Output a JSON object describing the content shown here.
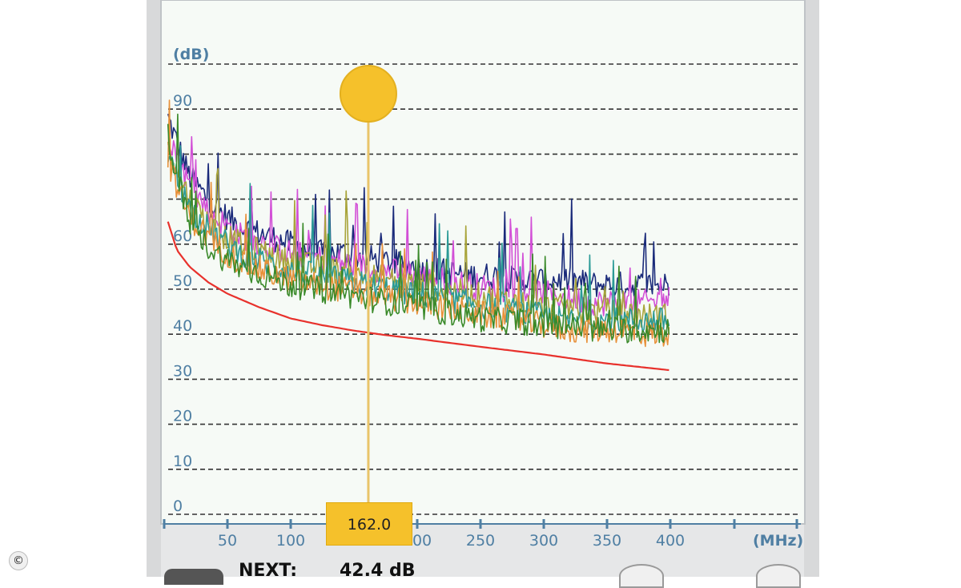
{
  "chart_data": {
    "type": "line",
    "xlabel": "(MHz)",
    "ylabel": "(dB)",
    "xlim": [
      0,
      400
    ],
    "ylim": [
      0,
      100
    ],
    "x_ticks": [
      50,
      100,
      150,
      200,
      250,
      300,
      350,
      400
    ],
    "x_tick_labels": [
      "50",
      "100",
      "",
      "200",
      "250",
      "300",
      "350",
      "400"
    ],
    "y_ticks": [
      0,
      10,
      20,
      30,
      40,
      50,
      60,
      70,
      80,
      90,
      100
    ],
    "y_tick_labels": [
      "0",
      "10",
      "20",
      "30",
      "40",
      "50",
      "60",
      "",
      "",
      "90",
      ""
    ],
    "grid": true,
    "limit_line": {
      "color": "#e8312c",
      "x": [
        3,
        10,
        20,
        35,
        50,
        75,
        100,
        125,
        150,
        175,
        200,
        250,
        300,
        350,
        400
      ],
      "y": [
        65.0,
        58.7,
        55.0,
        51.5,
        49.0,
        46.0,
        43.5,
        42.0,
        40.8,
        39.8,
        39.0,
        37.2,
        35.5,
        33.5,
        32.0
      ]
    },
    "series": [
      {
        "color": "#1a2a7a",
        "x": [
          3,
          20,
          40,
          60,
          80,
          100,
          120,
          140,
          160,
          180,
          200,
          220,
          240,
          260,
          280,
          300,
          320,
          340,
          360,
          380,
          400
        ],
        "y": [
          88,
          75,
          68,
          64,
          62,
          60,
          58,
          58,
          57,
          56,
          55,
          54,
          53,
          53,
          52,
          52,
          52,
          51,
          51,
          51,
          51
        ]
      },
      {
        "color": "#d24fd6",
        "x": [
          3,
          20,
          40,
          60,
          80,
          100,
          120,
          140,
          160,
          180,
          200,
          220,
          240,
          260,
          280,
          300,
          320,
          340,
          360,
          380,
          400
        ],
        "y": [
          85,
          73,
          66,
          62,
          60,
          58,
          57,
          56,
          55,
          54,
          53,
          52,
          51,
          50,
          50,
          49,
          48,
          47,
          47,
          47,
          48
        ]
      },
      {
        "color": "#a8a43a",
        "x": [
          3,
          20,
          40,
          60,
          80,
          100,
          120,
          140,
          160,
          180,
          200,
          220,
          240,
          260,
          280,
          300,
          320,
          340,
          360,
          380,
          400
        ],
        "y": [
          82,
          70,
          63,
          60,
          58,
          56,
          55,
          54,
          53,
          52,
          51,
          50,
          49,
          48,
          47,
          46,
          46,
          45,
          45,
          44,
          44
        ]
      },
      {
        "color": "#2a9a96",
        "x": [
          3,
          20,
          40,
          60,
          80,
          100,
          120,
          140,
          160,
          180,
          200,
          220,
          240,
          260,
          280,
          300,
          320,
          340,
          360,
          380,
          400
        ],
        "y": [
          80,
          68,
          62,
          58,
          56,
          54,
          53,
          52,
          51,
          50,
          49,
          48,
          47,
          46,
          45,
          44,
          43,
          43,
          43,
          43,
          43
        ]
      },
      {
        "color": "#e8913a",
        "x": [
          3,
          20,
          40,
          60,
          80,
          100,
          120,
          140,
          160,
          180,
          200,
          220,
          240,
          260,
          280,
          300,
          320,
          340,
          360,
          380,
          400
        ],
        "y": [
          78,
          66,
          60,
          56,
          54,
          52,
          51,
          50,
          49,
          48,
          47,
          46,
          45,
          44,
          43,
          42,
          41,
          41,
          41,
          40,
          40
        ]
      },
      {
        "color": "#3a8a2a",
        "x": [
          3,
          20,
          40,
          60,
          80,
          100,
          120,
          140,
          160,
          180,
          200,
          220,
          240,
          260,
          280,
          300,
          320,
          340,
          360,
          380,
          400
        ],
        "y": [
          84,
          64,
          58,
          55,
          53,
          51,
          50,
          49,
          48,
          47,
          46,
          45,
          44,
          43,
          43,
          42,
          42,
          41,
          41,
          41,
          41
        ]
      }
    ],
    "marker": {
      "x": 162.0,
      "label": "162.0",
      "color": "#f5c12b"
    }
  },
  "readout": {
    "name": "NEXT:",
    "value": "42.4 dB"
  },
  "copyright": "©",
  "icons": {
    "copyright": "copyright-icon",
    "marker": "marker-handle-icon"
  }
}
